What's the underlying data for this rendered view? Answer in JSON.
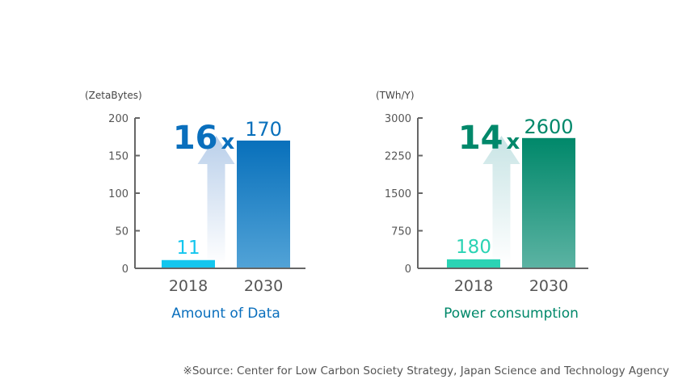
{
  "chart_data": [
    {
      "type": "bar",
      "title": "Amount of Data",
      "unit_label": "(ZetaBytes)",
      "categories": [
        "2018",
        "2030"
      ],
      "values": [
        11,
        170
      ],
      "data_labels": [
        "11",
        "170"
      ],
      "ylim": [
        0,
        200
      ],
      "yticks": [
        "0",
        "50",
        "100",
        "150",
        "200"
      ],
      "growth_label": "16",
      "growth_suffix": "x",
      "colors": {
        "bar_2018": "#13c6ee",
        "bar_2030_top": "#0870bb",
        "bar_2030_bottom": "#52a3d7",
        "title": "#0a6fbd",
        "growth": "#0a6fbd",
        "arrow": "#b9cfea"
      },
      "grid": false
    },
    {
      "type": "bar",
      "title": "Power consumption",
      "unit_label": "(TWh/Y)",
      "categories": [
        "2018",
        "2030"
      ],
      "values": [
        180,
        2600
      ],
      "data_labels": [
        "180",
        "2600"
      ],
      "ylim": [
        0,
        3000
      ],
      "yticks": [
        "0",
        "750",
        "1500",
        "2250",
        "3000"
      ],
      "growth_label": "14",
      "growth_suffix": "x",
      "colors": {
        "bar_2018": "#2bd3b4",
        "bar_2030_top": "#00886a",
        "bar_2030_bottom": "#5cb3a3",
        "title": "#00886a",
        "growth": "#00886a",
        "arrow": "#c8e4e5"
      },
      "grid": false
    }
  ],
  "source": "※Source: Center for Low Carbon Society Strategy, Japan Science and Technology Agency"
}
